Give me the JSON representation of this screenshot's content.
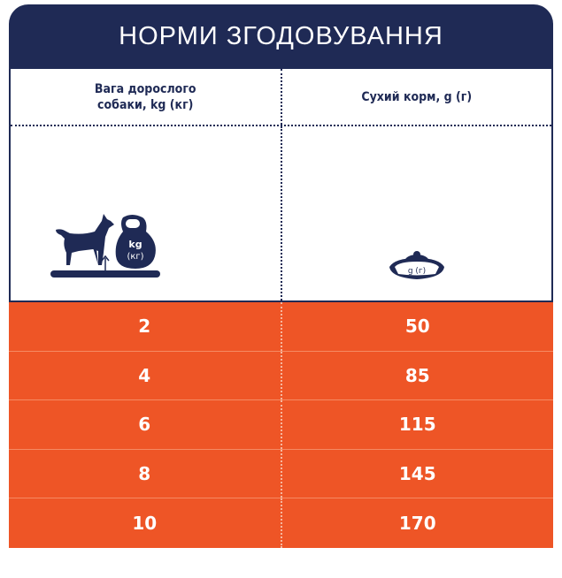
{
  "title": "НОРМИ ЗГОДОВУВАННЯ",
  "columns": [
    "Вага дорослого собаки, kg (кг)",
    "Сухий корм, g (г)"
  ],
  "column_lines": [
    [
      "Вага дорослого",
      "собаки, kg (кг)"
    ],
    [
      "Сухий корм, g (г)"
    ]
  ],
  "icons": {
    "weight": {
      "name": "dog-on-scale-with-kettlebell-icon",
      "label_1": "kg",
      "label_2": "(кг)"
    },
    "food": {
      "name": "food-bowl-icon",
      "label": "g (г)"
    }
  },
  "rows": [
    {
      "weight": "2",
      "food": "50"
    },
    {
      "weight": "4",
      "food": "85"
    },
    {
      "weight": "6",
      "food": "115"
    },
    {
      "weight": "8",
      "food": "145"
    },
    {
      "weight": "10",
      "food": "170"
    }
  ],
  "colors": {
    "navy": "#1f2a55",
    "orange": "#ee5526"
  }
}
